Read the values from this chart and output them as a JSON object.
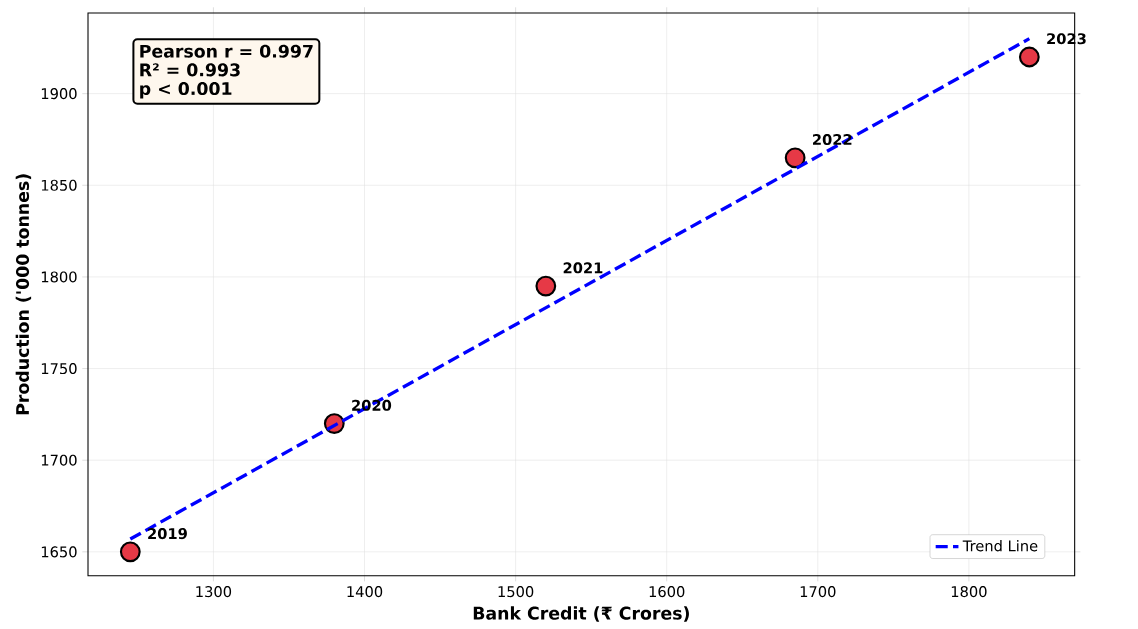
{
  "chart_data": {
    "type": "scatter",
    "xlabel": "Bank Credit (₹ Crores)",
    "ylabel": "Production ('000 tonnes)",
    "xlim": [
      1217,
      1870
    ],
    "ylim": [
      1637,
      1944
    ],
    "xticks": [
      1300,
      1400,
      1500,
      1600,
      1700,
      1800
    ],
    "yticks": [
      1650,
      1700,
      1750,
      1800,
      1850,
      1900
    ],
    "grid": true,
    "legend": "bottom right",
    "series": [
      {
        "color": "#e63946",
        "marker": "circle",
        "x": [
          1245,
          1380,
          1520,
          1685,
          1840
        ],
        "values": [
          1650,
          1720,
          1795,
          1865,
          1920
        ]
      },
      {
        "type": "line",
        "name": "Trend Line",
        "color": "#0000ff",
        "marker": "none",
        "line_style": "dashed",
        "x": [
          1245,
          1840
        ],
        "values": [
          1657,
          1930
        ]
      }
    ],
    "annotations": [
      {
        "text": "2019",
        "x": 1245,
        "y": 1650
      },
      {
        "text": "2020",
        "x": 1380,
        "y": 1720
      },
      {
        "text": "2021",
        "x": 1520,
        "y": 1795
      },
      {
        "text": "2022",
        "x": 1685,
        "y": 1865
      },
      {
        "text": "2023",
        "x": 1840,
        "y": 1920
      },
      "Pearson r = 0.997",
      "R² = 0.993",
      "p < 0.001"
    ]
  }
}
